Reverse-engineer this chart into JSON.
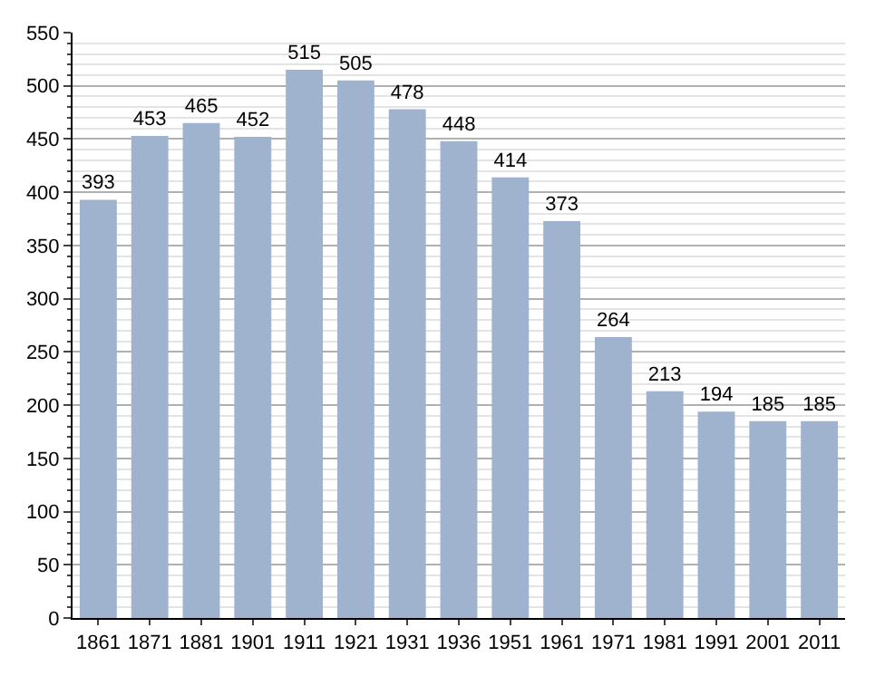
{
  "chart_data": {
    "type": "bar",
    "categories": [
      "1861",
      "1871",
      "1881",
      "1901",
      "1911",
      "1921",
      "1931",
      "1936",
      "1951",
      "1961",
      "1971",
      "1981",
      "1991",
      "2001",
      "2011"
    ],
    "values": [
      393,
      453,
      465,
      452,
      515,
      505,
      478,
      448,
      414,
      373,
      264,
      213,
      194,
      185,
      185
    ],
    "color": "#9fb3cf",
    "data_labels": true,
    "grid": "y",
    "ylim": [
      0,
      550
    ],
    "yticks": [
      0,
      {
        "value": 10,
        "label": null
      },
      {
        "value": 20,
        "label": null
      },
      {
        "value": 30,
        "label": null
      },
      {
        "value": 40,
        "label": null
      },
      50,
      {
        "value": 60,
        "label": null
      },
      {
        "value": 70,
        "label": null
      },
      {
        "value": 80,
        "label": null
      },
      {
        "value": 90,
        "label": null
      },
      100,
      {
        "value": 110,
        "label": null
      },
      {
        "value": 120,
        "label": null
      },
      {
        "value": 130,
        "label": null
      },
      {
        "value": 140,
        "label": null
      },
      150,
      {
        "value": 160,
        "label": null
      },
      {
        "value": 170,
        "label": null
      },
      {
        "value": 180,
        "label": null
      },
      {
        "value": 190,
        "label": null
      },
      200,
      {
        "value": 210,
        "label": null
      },
      {
        "value": 220,
        "label": null
      },
      {
        "value": 230,
        "label": null
      },
      {
        "value": 240,
        "label": null
      },
      250,
      {
        "value": 260,
        "label": null
      },
      {
        "value": 270,
        "label": null
      },
      {
        "value": 280,
        "label": null
      },
      {
        "value": 290,
        "label": null
      },
      300,
      {
        "value": 310,
        "label": null
      },
      {
        "value": 320,
        "label": null
      },
      {
        "value": 330,
        "label": null
      },
      {
        "value": 340,
        "label": null
      },
      350,
      {
        "value": 360,
        "label": null
      },
      {
        "value": 370,
        "label": null
      },
      {
        "value": 380,
        "label": null
      },
      {
        "value": 390,
        "label": null
      },
      400,
      {
        "value": 410,
        "label": null
      },
      {
        "value": 420,
        "label": null
      },
      {
        "value": 430,
        "label": null
      },
      {
        "value": 440,
        "label": null
      },
      450,
      {
        "value": 460,
        "label": null
      },
      {
        "value": 470,
        "label": null
      },
      {
        "value": 480,
        "label": null
      },
      {
        "value": 490,
        "label": null
      },
      500,
      {
        "value": 510,
        "label": null
      },
      {
        "value": 520,
        "label": null
      },
      {
        "value": 530,
        "label": null
      },
      {
        "value": 540,
        "label": null
      },
      550
    ]
  }
}
